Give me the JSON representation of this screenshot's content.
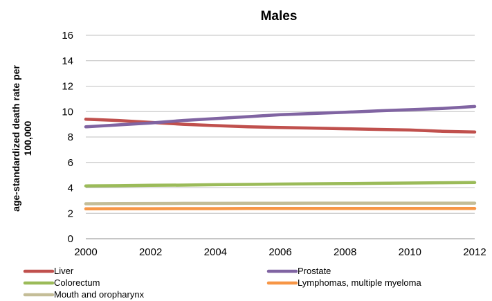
{
  "chart_data": {
    "type": "line",
    "title": "Males",
    "ylabel_lines": [
      "age-standardized death rate per",
      "100,000"
    ],
    "xlabel": "",
    "x": [
      2000,
      2001,
      2002,
      2003,
      2004,
      2005,
      2006,
      2007,
      2008,
      2009,
      2010,
      2011,
      2012
    ],
    "x_ticks": [
      "2000",
      "2002",
      "2004",
      "2006",
      "2008",
      "2010",
      "2012"
    ],
    "y_ticks": [
      "0",
      "2",
      "4",
      "6",
      "8",
      "10",
      "12",
      "14",
      "16"
    ],
    "ylim": [
      0,
      16
    ],
    "xlim": [
      2000,
      2012
    ],
    "grid": "horizontal",
    "legend_position": "bottom",
    "series": [
      {
        "name": "Liver",
        "color": "#c0504d",
        "values": [
          9.4,
          9.3,
          9.15,
          9.0,
          8.9,
          8.8,
          8.75,
          8.7,
          8.65,
          8.6,
          8.55,
          8.45,
          8.4
        ]
      },
      {
        "name": "Prostate",
        "color": "#8064a2",
        "values": [
          8.8,
          8.95,
          9.1,
          9.3,
          9.45,
          9.6,
          9.75,
          9.85,
          9.95,
          10.05,
          10.15,
          10.25,
          10.4
        ]
      },
      {
        "name": "Colorectum",
        "color": "#9bbb59",
        "values": [
          4.15,
          4.17,
          4.2,
          4.22,
          4.25,
          4.27,
          4.3,
          4.32,
          4.34,
          4.36,
          4.38,
          4.4,
          4.42
        ]
      },
      {
        "name": "Lymphomas, multiple myeloma",
        "color": "#f79646",
        "values": [
          2.35,
          2.36,
          2.36,
          2.37,
          2.37,
          2.38,
          2.38,
          2.38,
          2.38,
          2.38,
          2.38,
          2.38,
          2.38
        ]
      },
      {
        "name": "Mouth and oropharynx",
        "color": "#c4bd97",
        "values": [
          2.75,
          2.76,
          2.77,
          2.78,
          2.78,
          2.79,
          2.79,
          2.8,
          2.8,
          2.8,
          2.8,
          2.8,
          2.8
        ]
      }
    ]
  }
}
